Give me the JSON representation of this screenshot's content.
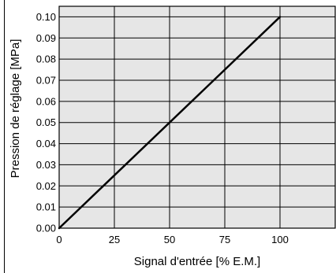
{
  "chart_data": {
    "type": "line",
    "xlabel": "Signal d'entrée  [% E.M.]",
    "ylabel": "Pression de réglage  [MPa]",
    "xlim": [
      0,
      125
    ],
    "ylim": [
      0,
      0.105
    ],
    "x_ticks": [
      "0",
      "25",
      "50",
      "75",
      "100"
    ],
    "y_ticks": [
      "0.00",
      "0.01",
      "0.02",
      "0.03",
      "0.04",
      "0.05",
      "0.06",
      "0.07",
      "0.08",
      "0.09",
      "0.10"
    ],
    "grid": true,
    "background_color": "#e6e6e6",
    "line_color": "#000000",
    "series": [
      {
        "x": [
          0,
          100
        ],
        "y": [
          0.0,
          0.1
        ]
      }
    ]
  }
}
